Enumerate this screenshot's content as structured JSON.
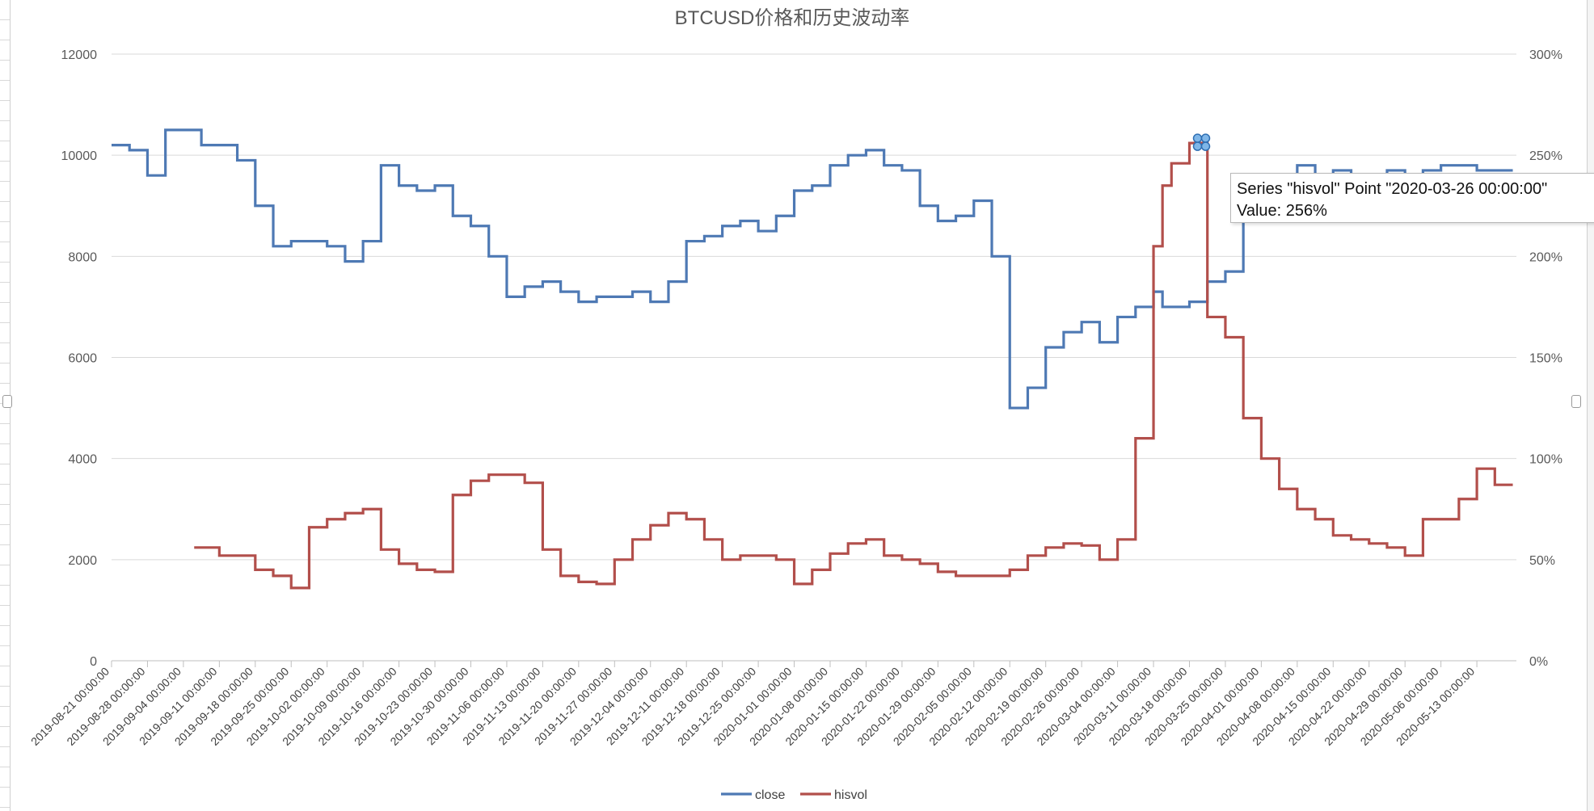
{
  "chart_data": {
    "type": "line",
    "title": "BTCUSD价格和历史波动率",
    "legend": {
      "placement": "bottom",
      "entries": [
        "close",
        "hisvol"
      ]
    },
    "grid": true,
    "x_tick_labels": [
      "2019-08-21 00:00:00",
      "2019-08-28 00:00:00",
      "2019-09-04 00:00:00",
      "2019-09-11 00:00:00",
      "2019-09-18 00:00:00",
      "2019-09-25 00:00:00",
      "2019-10-02 00:00:00",
      "2019-10-09 00:00:00",
      "2019-10-16 00:00:00",
      "2019-10-23 00:00:00",
      "2019-10-30 00:00:00",
      "2019-11-06 00:00:00",
      "2019-11-13 00:00:00",
      "2019-11-20 00:00:00",
      "2019-11-27 00:00:00",
      "2019-12-04 00:00:00",
      "2019-12-11 00:00:00",
      "2019-12-18 00:00:00",
      "2019-12-25 00:00:00",
      "2020-01-01 00:00:00",
      "2020-01-08 00:00:00",
      "2020-01-15 00:00:00",
      "2020-01-22 00:00:00",
      "2020-01-29 00:00:00",
      "2020-02-05 00:00:00",
      "2020-02-12 00:00:00",
      "2020-02-19 00:00:00",
      "2020-02-26 00:00:00",
      "2020-03-04 00:00:00",
      "2020-03-11 00:00:00",
      "2020-03-18 00:00:00",
      "2020-03-25 00:00:00",
      "2020-04-01 00:00:00",
      "2020-04-08 00:00:00",
      "2020-04-15 00:00:00",
      "2020-04-22 00:00:00",
      "2020-04-29 00:00:00",
      "2020-05-06 00:00:00",
      "2020-05-13 00:00:00"
    ],
    "y_left": {
      "ylim": [
        0,
        12000
      ],
      "ticks": [
        "0",
        "2000",
        "4000",
        "6000",
        "8000",
        "10000",
        "12000"
      ]
    },
    "y_right": {
      "ylim": [
        0,
        300
      ],
      "ticks": [
        "0%",
        "50%",
        "100%",
        "150%",
        "200%",
        "250%",
        "300%"
      ]
    },
    "series": [
      {
        "name": "close",
        "axis": "left",
        "color": "#4e79b4",
        "x": [
          0,
          0.5,
          1,
          1.5,
          2,
          2.5,
          3,
          3.5,
          4,
          4.5,
          5,
          5.5,
          6,
          6.5,
          7,
          7.5,
          8,
          8.5,
          9,
          9.5,
          10,
          10.5,
          11,
          11.5,
          12,
          12.5,
          13,
          13.5,
          14,
          14.5,
          15,
          15.5,
          16,
          16.5,
          17,
          17.5,
          18,
          18.5,
          19,
          19.5,
          20,
          20.5,
          21,
          21.5,
          22,
          22.5,
          23,
          23.5,
          24,
          24.5,
          25,
          25.5,
          26,
          26.5,
          27,
          27.5,
          28,
          28.5,
          29,
          29.25,
          29.5,
          30,
          30.5,
          31,
          31.5,
          32,
          32.5,
          33,
          33.5,
          34,
          34.5,
          35,
          35.5,
          36,
          36.5,
          37,
          37.5,
          38,
          38.5
        ],
        "y": [
          10200,
          10100,
          9600,
          10500,
          10500,
          10200,
          10200,
          9900,
          9000,
          8200,
          8300,
          8300,
          8200,
          7900,
          8300,
          9800,
          9400,
          9300,
          9400,
          8800,
          8600,
          8000,
          7200,
          7400,
          7500,
          7300,
          7100,
          7200,
          7200,
          7300,
          7100,
          7500,
          8300,
          8400,
          8600,
          8700,
          8500,
          8800,
          9300,
          9400,
          9800,
          10000,
          10100,
          9800,
          9700,
          9000,
          8700,
          8800,
          9100,
          8000,
          5000,
          5400,
          6200,
          6500,
          6700,
          6300,
          6800,
          7000,
          7300,
          7000,
          7000,
          7100,
          7500,
          7700,
          8800,
          8900,
          9300,
          9800,
          9300,
          9700,
          9600,
          9500,
          9700,
          9600,
          9700,
          9800,
          9800,
          9700,
          9700
        ]
      },
      {
        "name": "hisvol",
        "axis": "right",
        "color": "#b24f4b",
        "x": [
          2.3,
          3,
          4,
          4.5,
          5,
          5.5,
          6,
          6.5,
          7,
          7.5,
          8,
          8.5,
          9,
          9.5,
          10,
          10.5,
          11,
          11.5,
          12,
          12.5,
          13,
          13.5,
          14,
          14.5,
          15,
          15.5,
          16,
          16.5,
          17,
          17.5,
          18,
          18.5,
          19,
          19.5,
          20,
          20.5,
          21,
          21.5,
          22,
          22.5,
          23,
          23.5,
          24,
          24.5,
          25,
          25.5,
          26,
          26.5,
          27,
          27.5,
          28,
          28.5,
          29,
          29.25,
          29.5,
          30,
          30.5,
          31,
          31.5,
          32,
          32.5,
          33,
          33.5,
          34,
          34.5,
          35,
          35.5,
          36,
          36.5,
          37,
          37.5,
          38,
          38.5
        ],
        "y": [
          56,
          52,
          45,
          42,
          36,
          66,
          70,
          73,
          75,
          55,
          48,
          45,
          44,
          82,
          89,
          92,
          92,
          88,
          55,
          42,
          39,
          38,
          50,
          60,
          67,
          73,
          70,
          60,
          50,
          52,
          52,
          50,
          38,
          45,
          53,
          58,
          60,
          52,
          50,
          48,
          44,
          42,
          42,
          42,
          45,
          52,
          56,
          58,
          57,
          50,
          60,
          110,
          205,
          235,
          246,
          256,
          170,
          160,
          120,
          100,
          85,
          75,
          70,
          62,
          60,
          58,
          56,
          52,
          70,
          70,
          80,
          95,
          87
        ]
      }
    ],
    "tooltip": {
      "line1": "Series \"hisvol\" Point \"2020-03-26 00:00:00\"",
      "line2": "Value: 256%"
    }
  }
}
